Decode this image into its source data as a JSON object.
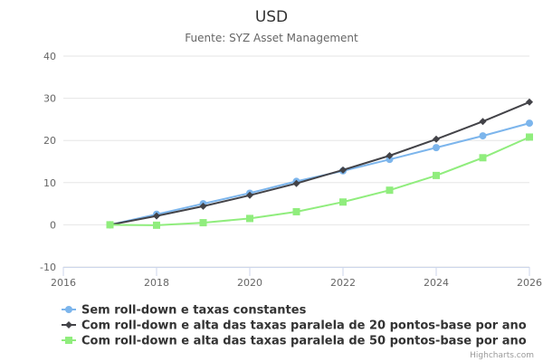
{
  "chart_data": {
    "type": "line",
    "title": "USD",
    "subtitle": "Fuente: SYZ Asset Management",
    "xlabel": "",
    "ylabel": "",
    "xlim": [
      2016,
      2026
    ],
    "ylim": [
      -10,
      40
    ],
    "x_ticks": [
      2016,
      2018,
      2020,
      2022,
      2024,
      2026
    ],
    "y_ticks": [
      -10,
      0,
      10,
      20,
      30,
      40
    ],
    "grid": "horizontal",
    "legend_position": "bottom-left",
    "series": [
      {
        "name": "Sem roll-down e taxas constantes",
        "color": "#7cb5ec",
        "marker": "circle",
        "x": [
          2017,
          2018,
          2019,
          2020,
          2021,
          2022,
          2023,
          2024,
          2025,
          2026
        ],
        "values": [
          0,
          2.5,
          5.0,
          7.5,
          10.3,
          12.8,
          15.5,
          18.3,
          21.1,
          24.1
        ]
      },
      {
        "name": "Com roll-down e alta das taxas paralela de 20 pontos-base por ano",
        "color": "#434348",
        "marker": "diamond",
        "x": [
          2017,
          2018,
          2019,
          2020,
          2021,
          2022,
          2023,
          2024,
          2025,
          2026
        ],
        "values": [
          0,
          2.1,
          4.4,
          7.0,
          9.8,
          13.0,
          16.4,
          20.3,
          24.5,
          29.1
        ]
      },
      {
        "name": "Com roll-down e alta das taxas paralela de 50 pontos-base por ano",
        "color": "#90ed7d",
        "marker": "square",
        "x": [
          2017,
          2018,
          2019,
          2020,
          2021,
          2022,
          2023,
          2024,
          2025,
          2026
        ],
        "values": [
          0,
          -0.1,
          0.5,
          1.5,
          3.1,
          5.4,
          8.2,
          11.7,
          15.9,
          20.8
        ]
      }
    ]
  },
  "credits": "Highcharts.com"
}
